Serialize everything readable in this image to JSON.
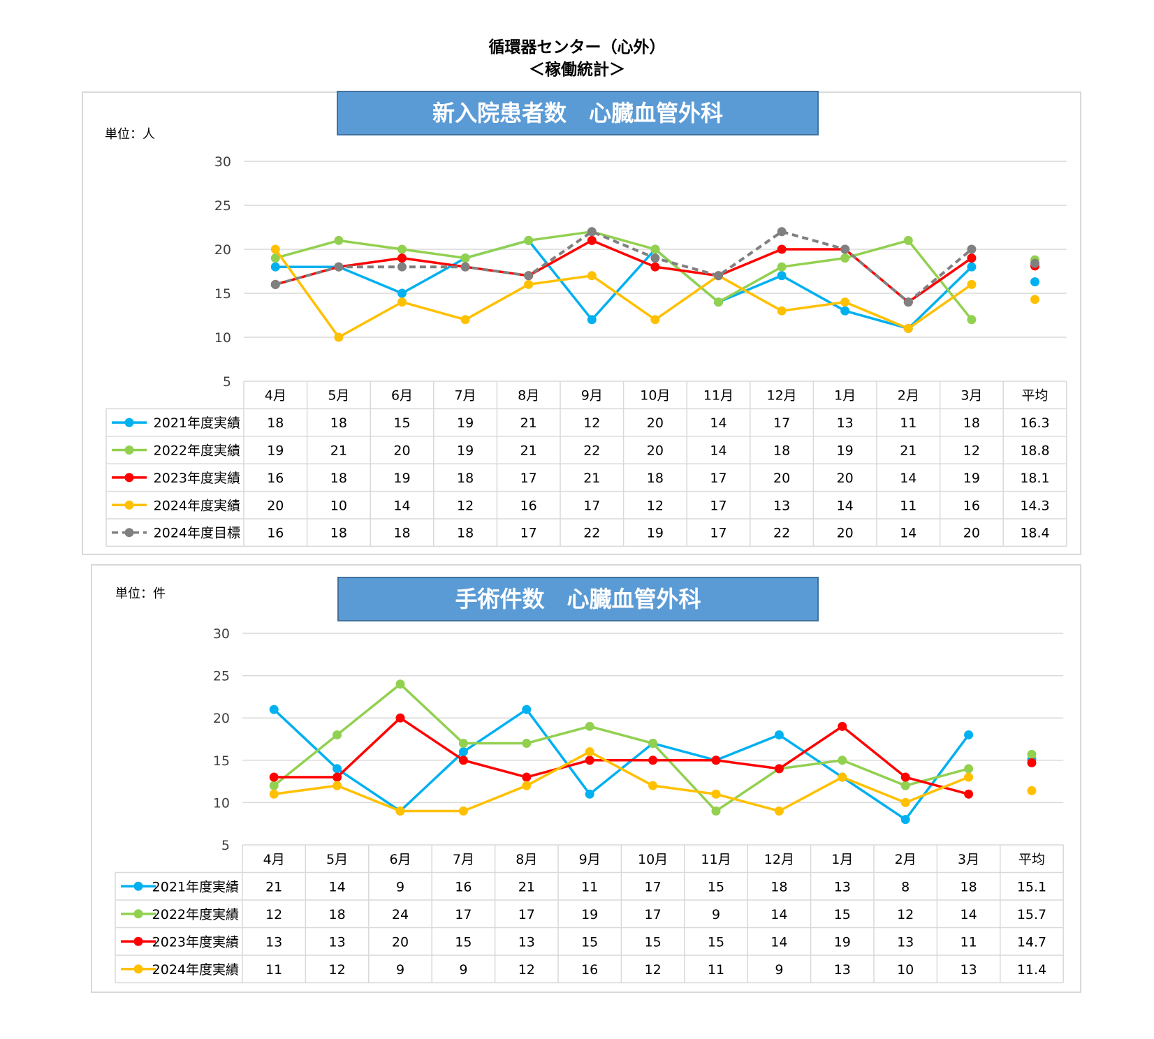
{
  "page": {
    "title_line1": "循環器センター（心外）",
    "title_line2": "＜稼働統計＞"
  },
  "chart_data": [
    {
      "type": "line",
      "title": "新入院患者数　心臓血管外科",
      "unit_label": "単位：人",
      "ylim": [
        5,
        30
      ],
      "yticks": [
        5,
        10,
        15,
        20,
        25,
        30
      ],
      "grid": true,
      "categories": [
        "4月",
        "5月",
        "6月",
        "7月",
        "8月",
        "9月",
        "10月",
        "11月",
        "12月",
        "1月",
        "2月",
        "3月"
      ],
      "avg_header": "平均",
      "series": [
        {
          "name": "2021年度実績",
          "color": "#00b0f0",
          "dashed": false,
          "values": [
            18,
            18,
            15,
            19,
            21,
            12,
            20,
            14,
            17,
            13,
            11,
            18
          ],
          "avg": "16.3"
        },
        {
          "name": "2022年度実績",
          "color": "#92d050",
          "dashed": false,
          "values": [
            19,
            21,
            20,
            19,
            21,
            22,
            20,
            14,
            18,
            19,
            21,
            12
          ],
          "avg": "18.8"
        },
        {
          "name": "2023年度実績",
          "color": "#ff0000",
          "dashed": false,
          "values": [
            16,
            18,
            19,
            18,
            17,
            21,
            18,
            17,
            20,
            20,
            14,
            19
          ],
          "avg": "18.1"
        },
        {
          "name": "2024年度実績",
          "color": "#ffc000",
          "dashed": false,
          "values": [
            20,
            10,
            14,
            12,
            16,
            17,
            12,
            17,
            13,
            14,
            11,
            16
          ],
          "avg": "14.3"
        },
        {
          "name": "2024年度目標",
          "color": "#808080",
          "dashed": true,
          "values": [
            16,
            18,
            18,
            18,
            17,
            22,
            19,
            17,
            22,
            20,
            14,
            20
          ],
          "avg": "18.4"
        }
      ]
    },
    {
      "type": "line",
      "title": "手術件数　心臓血管外科",
      "unit_label": "単位：件",
      "ylim": [
        5,
        30
      ],
      "yticks": [
        5,
        10,
        15,
        20,
        25,
        30
      ],
      "grid": true,
      "categories": [
        "4月",
        "5月",
        "6月",
        "7月",
        "8月",
        "9月",
        "10月",
        "11月",
        "12月",
        "1月",
        "2月",
        "3月"
      ],
      "avg_header": "平均",
      "series": [
        {
          "name": "2021年度実績",
          "color": "#00b0f0",
          "dashed": false,
          "values": [
            21,
            14,
            9,
            16,
            21,
            11,
            17,
            15,
            18,
            13,
            8,
            18
          ],
          "avg": "15.1"
        },
        {
          "name": "2022年度実績",
          "color": "#92d050",
          "dashed": false,
          "values": [
            12,
            18,
            24,
            17,
            17,
            19,
            17,
            9,
            14,
            15,
            12,
            14
          ],
          "avg": "15.7"
        },
        {
          "name": "2023年度実績",
          "color": "#ff0000",
          "dashed": false,
          "values": [
            13,
            13,
            20,
            15,
            13,
            15,
            15,
            15,
            14,
            19,
            13,
            11
          ],
          "avg": "14.7"
        },
        {
          "name": "2024年度実績",
          "color": "#ffc000",
          "dashed": false,
          "values": [
            11,
            12,
            9,
            9,
            12,
            16,
            12,
            11,
            9,
            13,
            10,
            13
          ],
          "avg": "11.4"
        }
      ]
    }
  ]
}
